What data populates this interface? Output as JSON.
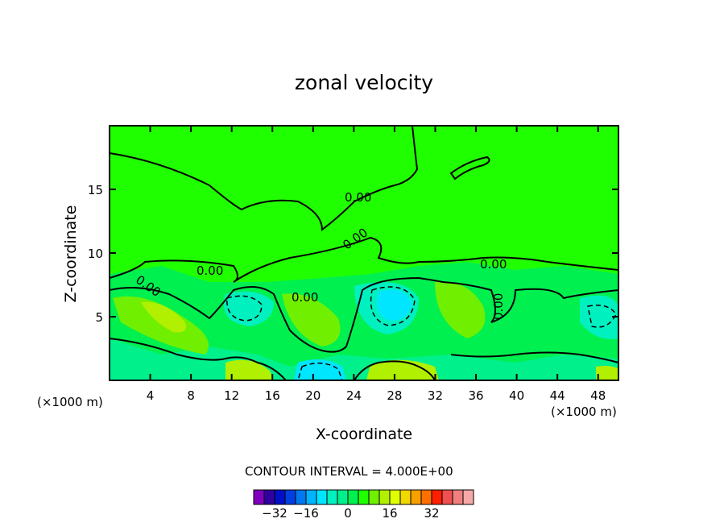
{
  "chart_data": {
    "type": "heatmap",
    "title": "zonal velocity",
    "xlabel": "X-coordinate",
    "ylabel": "Z-coordinate",
    "x_unit": "(×1000 m)",
    "x_unit_right": "(×1000 m)",
    "xlim": [
      0,
      50
    ],
    "ylim": [
      0,
      20
    ],
    "x_ticks": [
      4,
      8,
      12,
      16,
      20,
      24,
      28,
      32,
      36,
      40,
      44,
      48
    ],
    "y_ticks": [
      5,
      10,
      15
    ],
    "contour_labels": [
      "0.00",
      "0.00",
      "0.00",
      "0.00",
      "0.00",
      "0.00",
      "0.00",
      "0.00"
    ],
    "contour_interval_text": "CONTOUR INTERVAL = 4.000E+00",
    "colorbar": {
      "tick_labels": [
        "−32",
        "−16",
        "0",
        "16",
        "32"
      ],
      "colors": [
        "#8000c0",
        "#3000a0",
        "#0010c8",
        "#0040e0",
        "#0078f0",
        "#00b4ff",
        "#00e6ff",
        "#00f0c0",
        "#00f08c",
        "#00f050",
        "#20ff00",
        "#70f000",
        "#b0f000",
        "#e0ff00",
        "#f0d800",
        "#f8a000",
        "#ff7000",
        "#ff2000",
        "#f05050",
        "#f08080",
        "#f8a8a8"
      ]
    }
  }
}
